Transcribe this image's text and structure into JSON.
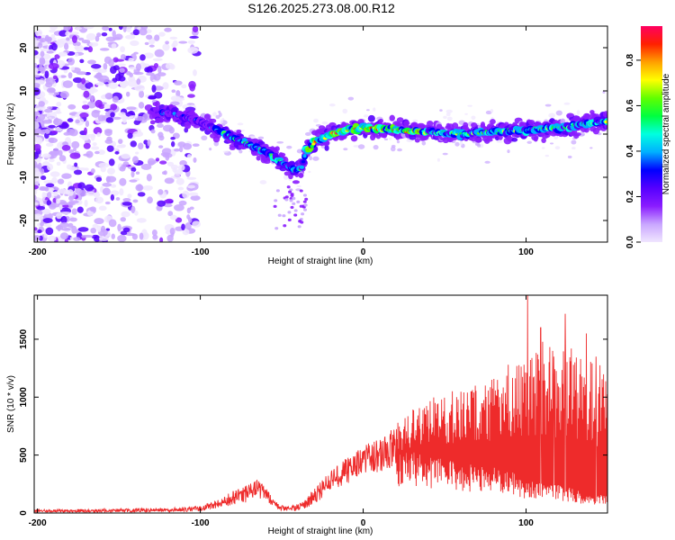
{
  "title": "S126.2025.273.08.00.R12",
  "chart_data": [
    {
      "type": "heatmap",
      "name": "spectrogram",
      "xlabel": "Height of straight line (km)",
      "ylabel": "Frequency (Hz)",
      "xlim": [
        -202,
        150
      ],
      "ylim": [
        -25,
        25
      ],
      "xticks": [
        -200,
        -100,
        0,
        100
      ],
      "yticks": [
        -20,
        -10,
        0,
        10,
        20
      ],
      "ridge_center": {
        "x": [
          -202,
          -120,
          -100,
          -80,
          -60,
          -50,
          -42,
          -38,
          -35,
          -30,
          -20,
          -10,
          0,
          20,
          40,
          60,
          80,
          100,
          120,
          150
        ],
        "y": [
          3,
          5,
          3,
          -1,
          -4,
          -6.5,
          -8.5,
          -8,
          -4,
          -2,
          0,
          1,
          1.5,
          1,
          0.5,
          0,
          0.5,
          1,
          1.5,
          3
        ]
      },
      "colorbar": {
        "label": "Normalized spectral amplitude",
        "range": [
          0.0,
          0.95
        ],
        "ticks": [
          0.0,
          0.2,
          0.4,
          0.6,
          0.8
        ],
        "tick_labels": [
          "0.0",
          "0.2",
          "0.4",
          "0.6",
          "0.8"
        ],
        "colormap": [
          "#f0e6ff",
          "#c9a6ff",
          "#8a1cff",
          "#5500ff",
          "#0000ff",
          "#00b0ff",
          "#00ffe0",
          "#00ff40",
          "#60ff00",
          "#ffff00",
          "#ffa000",
          "#ff2000",
          "#ff0060"
        ]
      }
    },
    {
      "type": "line",
      "name": "snr",
      "xlabel": "Height of straight line (km)",
      "ylabel": "SNR (10 * v/v)",
      "xlim": [
        -202,
        150
      ],
      "ylim": [
        0,
        1880
      ],
      "xticks": [
        -200,
        -100,
        0,
        100
      ],
      "yticks": [
        0,
        500,
        1000,
        1500
      ],
      "color": "#ee2b2b",
      "envelope": {
        "x": [
          -202,
          -160,
          -120,
          -100,
          -90,
          -80,
          -70,
          -65,
          -60,
          -55,
          -50,
          -45,
          -40,
          -35,
          -30,
          -25,
          -20,
          -15,
          -10,
          -5,
          0,
          10,
          20,
          30,
          40,
          50,
          60,
          70,
          80,
          90,
          100,
          110,
          120,
          130,
          140,
          150
        ],
        "lo": [
          5,
          5,
          10,
          15,
          40,
          60,
          90,
          130,
          110,
          40,
          20,
          15,
          20,
          40,
          80,
          120,
          200,
          220,
          250,
          300,
          350,
          350,
          380,
          380,
          360,
          330,
          310,
          300,
          280,
          280,
          200,
          180,
          180,
          150,
          100,
          120
        ],
        "hi": [
          30,
          35,
          45,
          60,
          110,
          190,
          250,
          290,
          230,
          110,
          70,
          60,
          80,
          120,
          220,
          300,
          360,
          420,
          480,
          520,
          580,
          650,
          750,
          850,
          960,
          1000,
          1000,
          1050,
          1100,
          1150,
          1300,
          1400,
          1350,
          1300,
          1200,
          1150
        ]
      },
      "peaks": [
        {
          "x": 101,
          "y": 1880
        },
        {
          "x": 109,
          "y": 1600
        },
        {
          "x": 124,
          "y": 1720
        },
        {
          "x": 137,
          "y": 1550
        },
        {
          "x": 130,
          "y": 1300
        },
        {
          "x": 117,
          "y": 1350
        },
        {
          "x": 89,
          "y": 1280
        },
        {
          "x": 143,
          "y": 1350
        }
      ]
    }
  ]
}
